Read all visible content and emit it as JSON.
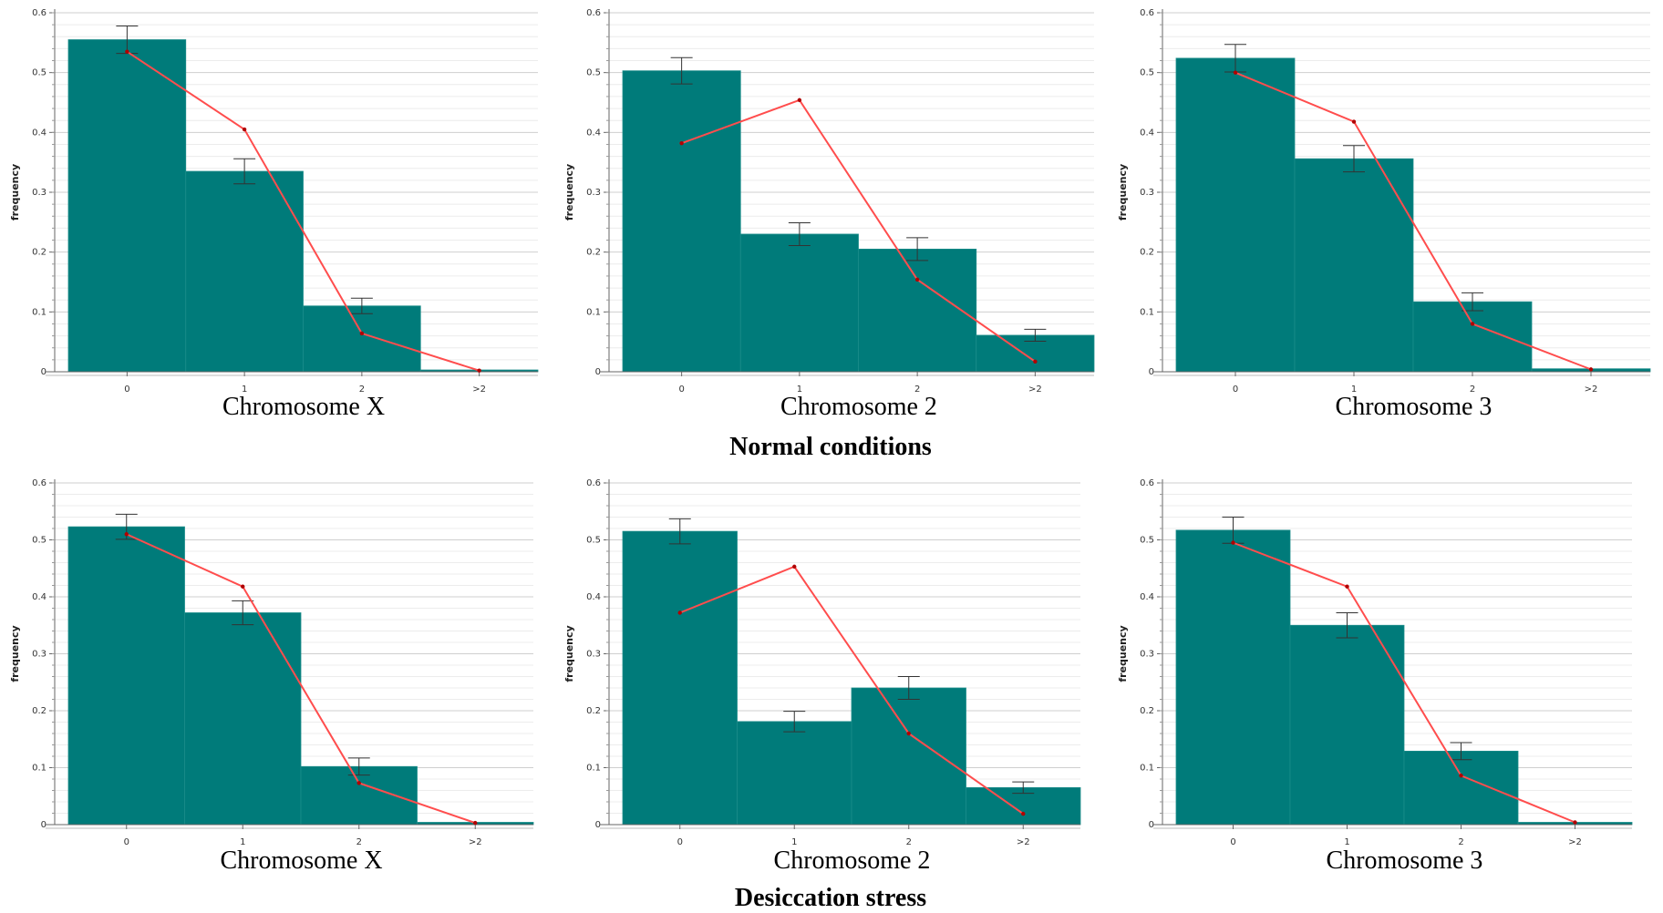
{
  "sections": [
    {
      "title": "Normal conditions"
    },
    {
      "title": "Desiccation stress"
    }
  ],
  "colors": {
    "bar": "#007b7a",
    "bar_edge": "#1b8d8a",
    "line": "#ff4d4d",
    "point": "#b00000",
    "grid": "#d9d9d9",
    "axis": "#666666"
  },
  "chart_data": [
    {
      "type": "bar",
      "title": "Chromosome X",
      "xlabel": "",
      "ylabel": "frequency",
      "categories": [
        "0",
        "1",
        "2",
        ">2"
      ],
      "ylim": [
        0,
        0.6
      ],
      "yticks": [
        "0",
        "0.1",
        "0.2",
        "0.3",
        "0.4",
        "0.5",
        "0.6"
      ],
      "series": [
        {
          "values": [
            0.555,
            0.335,
            0.11,
            0.003
          ],
          "errors": [
            0.023,
            0.021,
            0.013,
            0.0
          ]
        },
        {
          "type": "line",
          "values": [
            0.535,
            0.405,
            0.064,
            0.002
          ]
        }
      ]
    },
    {
      "type": "bar",
      "title": "Chromosome 2",
      "xlabel": "",
      "ylabel": "frequency",
      "categories": [
        "0",
        "1",
        "2",
        ">2"
      ],
      "ylim": [
        0,
        0.6
      ],
      "yticks": [
        "0",
        "0.1",
        "0.2",
        "0.3",
        "0.4",
        "0.5",
        "0.6"
      ],
      "series": [
        {
          "values": [
            0.503,
            0.23,
            0.205,
            0.061
          ],
          "errors": [
            0.022,
            0.019,
            0.019,
            0.01
          ]
        },
        {
          "type": "line",
          "values": [
            0.382,
            0.454,
            0.154,
            0.017
          ]
        }
      ]
    },
    {
      "type": "bar",
      "title": "Chromosome 3",
      "xlabel": "",
      "ylabel": "frequency",
      "categories": [
        "0",
        "1",
        "2",
        ">2"
      ],
      "ylim": [
        0,
        0.6
      ],
      "yticks": [
        "0",
        "0.1",
        "0.2",
        "0.3",
        "0.4",
        "0.5",
        "0.6"
      ],
      "series": [
        {
          "values": [
            0.524,
            0.356,
            0.117,
            0.005
          ],
          "errors": [
            0.023,
            0.022,
            0.015,
            0.0
          ]
        },
        {
          "type": "line",
          "values": [
            0.5,
            0.418,
            0.08,
            0.004
          ]
        }
      ]
    },
    {
      "type": "bar",
      "title": "Chromosome X",
      "xlabel": "",
      "ylabel": "frequency",
      "categories": [
        "0",
        "1",
        "2",
        ">2"
      ],
      "ylim": [
        0,
        0.6
      ],
      "yticks": [
        "0",
        "0.1",
        "0.2",
        "0.3",
        "0.4",
        "0.5",
        "0.6"
      ],
      "series": [
        {
          "values": [
            0.523,
            0.372,
            0.102,
            0.004
          ],
          "errors": [
            0.022,
            0.021,
            0.015,
            0.0
          ]
        },
        {
          "type": "line",
          "values": [
            0.51,
            0.418,
            0.073,
            0.003
          ]
        }
      ]
    },
    {
      "type": "bar",
      "title": "Chromosome 2",
      "xlabel": "",
      "ylabel": "frequency",
      "categories": [
        "0",
        "1",
        "2",
        ">2"
      ],
      "ylim": [
        0,
        0.6
      ],
      "yticks": [
        "0",
        "0.1",
        "0.2",
        "0.3",
        "0.4",
        "0.5",
        "0.6"
      ],
      "series": [
        {
          "values": [
            0.515,
            0.181,
            0.24,
            0.065
          ],
          "errors": [
            0.022,
            0.018,
            0.02,
            0.01
          ]
        },
        {
          "type": "line",
          "values": [
            0.372,
            0.453,
            0.16,
            0.019
          ]
        }
      ]
    },
    {
      "type": "bar",
      "title": "Chromosome 3",
      "xlabel": "",
      "ylabel": "frequency",
      "categories": [
        "0",
        "1",
        "2",
        ">2"
      ],
      "ylim": [
        0,
        0.6
      ],
      "yticks": [
        "0",
        "0.1",
        "0.2",
        "0.3",
        "0.4",
        "0.5",
        "0.6"
      ],
      "series": [
        {
          "values": [
            0.517,
            0.35,
            0.129,
            0.004
          ],
          "errors": [
            0.023,
            0.022,
            0.015,
            0.0
          ]
        },
        {
          "type": "line",
          "values": [
            0.495,
            0.418,
            0.086,
            0.004
          ]
        }
      ]
    }
  ]
}
